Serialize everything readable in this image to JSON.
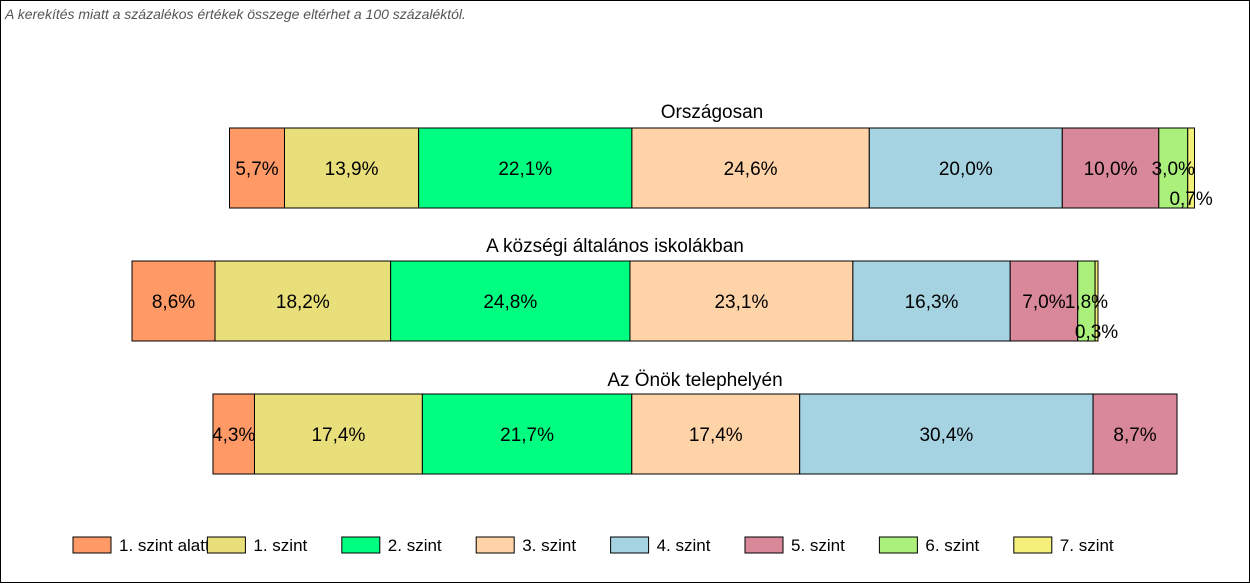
{
  "note": "A kerekítés miatt a  százalékos értékek összege eltérhet a 100 százaléktól.",
  "colors": {
    "1. szint alatti": "#FF9966",
    "1. szint": "#E8DE7A",
    "2. szint": "#00FF80",
    "3. szint": "#FFD3A8",
    "4. szint": "#A6D3E2",
    "5. szint": "#D88898",
    "6. szint": "#AAF07A",
    "7. szint": "#F5F07A"
  },
  "chart_data": {
    "type": "bar",
    "orientation": "horizontal",
    "stacked": true,
    "legend_position": "bottom",
    "categories": [
      "1. szint alatti",
      "1. szint",
      "2. szint",
      "3. szint",
      "4. szint",
      "5. szint",
      "6. szint",
      "7. szint"
    ],
    "groups": [
      {
        "title": "Országosan",
        "values": [
          5.7,
          13.9,
          22.1,
          24.6,
          20.0,
          10.0,
          3.0,
          0.7
        ],
        "labels": [
          "5,7%",
          "13,9%",
          "22,1%",
          "24,6%",
          "20,0%",
          "10,0%",
          "3,0%",
          "0,7%"
        ]
      },
      {
        "title": "A községi általános iskolákban",
        "values": [
          8.6,
          18.2,
          24.8,
          23.1,
          16.3,
          7.0,
          1.8,
          0.3
        ],
        "labels": [
          "8,6%",
          "18,2%",
          "24,8%",
          "23,1%",
          "16,3%",
          "7,0%",
          "1,8%",
          "0,3%"
        ]
      },
      {
        "title": "Az Önök telephelyén",
        "values": [
          4.3,
          17.4,
          21.7,
          17.4,
          30.4,
          8.7,
          0,
          0
        ],
        "labels": [
          "4,3%",
          "17,4%",
          "21,7%",
          "17,4%",
          "30,4%",
          "8,7%",
          "",
          ""
        ]
      }
    ]
  }
}
